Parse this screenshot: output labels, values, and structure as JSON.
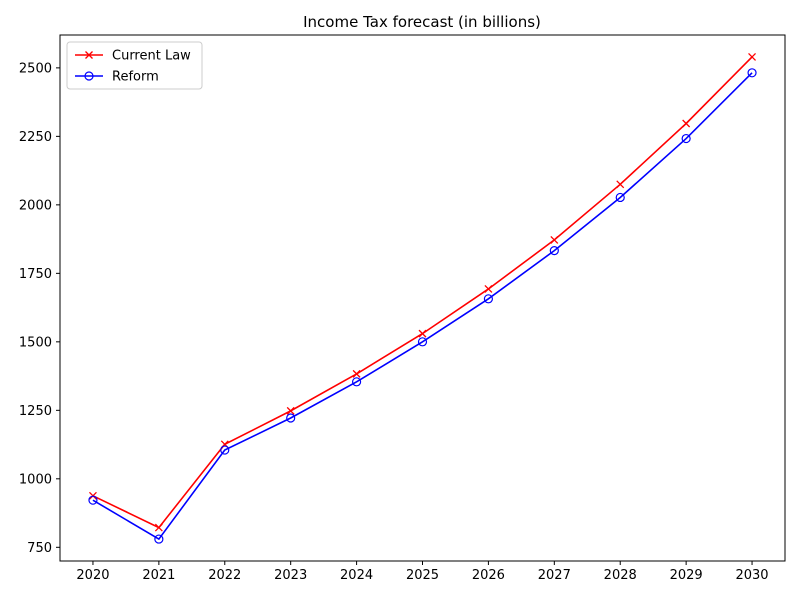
{
  "chart_data": {
    "type": "line",
    "title": "Income Tax forecast (in billions)",
    "xlabel": "",
    "ylabel": "",
    "x": [
      2020,
      2021,
      2022,
      2023,
      2024,
      2025,
      2026,
      2027,
      2028,
      2029,
      2030
    ],
    "ylim": [
      700,
      2620
    ],
    "yticks": [
      750,
      1000,
      1250,
      1500,
      1750,
      2000,
      2250,
      2500
    ],
    "grid": false,
    "legend_position": "top-left",
    "series": [
      {
        "name": "Current Law",
        "color": "#ff0000",
        "marker": "x",
        "values": [
          938,
          822,
          1126,
          1248,
          1383,
          1530,
          1693,
          1872,
          2075,
          2297,
          2540
        ]
      },
      {
        "name": "Reform",
        "color": "#0000ff",
        "marker": "circle",
        "values": [
          922,
          780,
          1105,
          1222,
          1354,
          1500,
          1657,
          1833,
          2027,
          2242,
          2482
        ]
      }
    ]
  }
}
